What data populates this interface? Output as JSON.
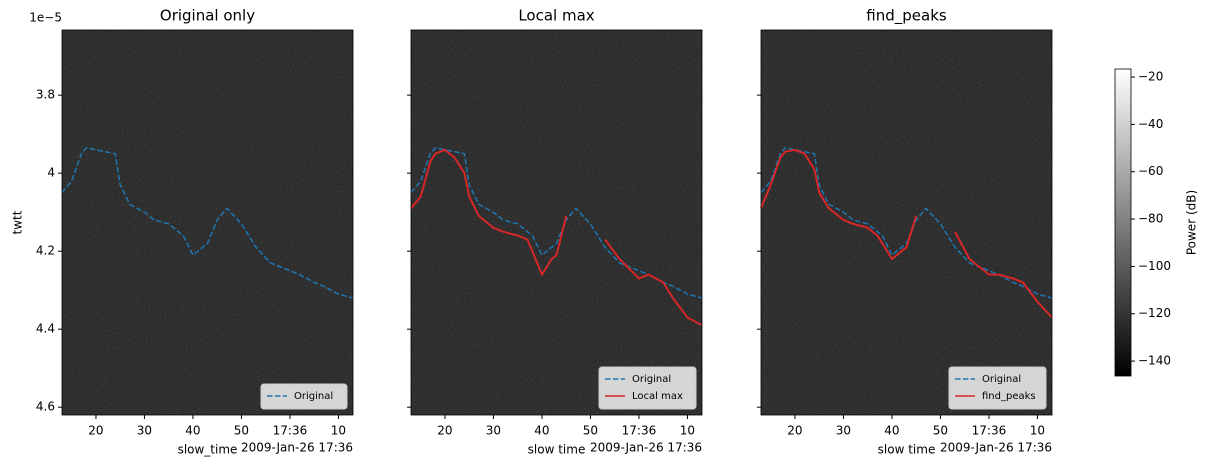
{
  "chart_data": [
    {
      "type": "line",
      "title": "Original only",
      "xlabel": "slow_time",
      "ylabel": "twtt",
      "x_offset_label": "2009-Jan-26 17:36",
      "y_offset_label": "1e−5",
      "xlim": [
        13,
        73
      ],
      "xticks": [
        20,
        30,
        40,
        50,
        {
          "value": 60,
          "label": "17:36"
        },
        {
          "value": 70,
          "label": "10"
        }
      ],
      "ylim": [
        4.62,
        3.633
      ],
      "yticks": [
        3.8,
        4.0,
        4.2,
        4.4,
        4.6
      ],
      "ytick_labels": true,
      "legend": "lower right",
      "x": [
        13,
        15,
        17,
        18,
        20,
        22,
        24,
        25,
        27,
        30,
        32,
        35,
        37,
        38,
        40,
        42,
        43,
        45,
        47,
        50,
        53,
        56,
        60,
        62,
        65,
        67,
        70,
        73
      ],
      "series": [
        {
          "name": "Original",
          "color": "#1f77b4",
          "linestyle": "dashed",
          "values": [
            4.05,
            4.02,
            3.95,
            3.935,
            3.94,
            3.945,
            3.95,
            4.03,
            4.08,
            4.1,
            4.12,
            4.13,
            4.15,
            4.16,
            4.21,
            4.19,
            4.18,
            4.12,
            4.09,
            4.13,
            4.19,
            4.23,
            4.25,
            4.26,
            4.28,
            4.29,
            4.31,
            4.32
          ]
        }
      ]
    },
    {
      "type": "line",
      "title": "Local max",
      "xlabel": "slow time",
      "x_offset_label": "2009-Jan-26 17:36",
      "xlim": [
        13,
        73
      ],
      "xticks": [
        20,
        30,
        40,
        50,
        {
          "value": 60,
          "label": "17:36"
        },
        {
          "value": 70,
          "label": "10"
        }
      ],
      "ylim": [
        4.62,
        3.633
      ],
      "yticks": [
        3.8,
        4.0,
        4.2,
        4.4,
        4.6
      ],
      "ytick_labels": false,
      "legend": "lower right",
      "x": [
        13,
        15,
        17,
        18,
        20,
        22,
        24,
        25,
        27,
        30,
        32,
        35,
        37,
        38,
        40,
        42,
        43,
        45,
        47,
        50,
        53,
        56,
        60,
        62,
        65,
        67,
        70,
        73
      ],
      "series": [
        {
          "name": "Original",
          "color": "#1f77b4",
          "linestyle": "dashed",
          "values": [
            4.05,
            4.02,
            3.95,
            3.935,
            3.94,
            3.945,
            3.95,
            4.03,
            4.08,
            4.1,
            4.12,
            4.13,
            4.15,
            4.16,
            4.21,
            4.19,
            4.18,
            4.12,
            4.09,
            4.13,
            4.19,
            4.23,
            4.25,
            4.26,
            4.28,
            4.29,
            4.31,
            4.32
          ]
        },
        {
          "name": "Local max",
          "color": "#d62728",
          "linestyle": "solid",
          "values": [
            4.09,
            4.06,
            3.97,
            3.95,
            3.94,
            3.96,
            4.0,
            4.06,
            4.11,
            4.14,
            4.15,
            4.16,
            4.17,
            4.2,
            4.26,
            4.22,
            4.21,
            4.11,
            null,
            null,
            4.17,
            4.22,
            4.27,
            4.26,
            4.28,
            4.32,
            4.37,
            4.39
          ]
        }
      ]
    },
    {
      "type": "line",
      "title": "find_peaks",
      "xlabel": "slow time",
      "x_offset_label": "2009-Jan-26 17:36",
      "xlim": [
        13,
        73
      ],
      "xticks": [
        20,
        30,
        40,
        50,
        {
          "value": 60,
          "label": "17:36"
        },
        {
          "value": 70,
          "label": "10"
        }
      ],
      "ylim": [
        4.62,
        3.633
      ],
      "yticks": [
        3.8,
        4.0,
        4.2,
        4.4,
        4.6
      ],
      "ytick_labels": false,
      "legend": "lower right",
      "x": [
        13,
        15,
        17,
        18,
        20,
        22,
        24,
        25,
        27,
        30,
        32,
        35,
        37,
        38,
        40,
        42,
        43,
        45,
        47,
        50,
        53,
        56,
        60,
        62,
        65,
        67,
        70,
        73
      ],
      "series": [
        {
          "name": "Original",
          "color": "#1f77b4",
          "linestyle": "dashed",
          "values": [
            4.05,
            4.02,
            3.95,
            3.935,
            3.94,
            3.945,
            3.95,
            4.03,
            4.08,
            4.1,
            4.12,
            4.13,
            4.15,
            4.16,
            4.21,
            4.19,
            4.18,
            4.12,
            4.09,
            4.13,
            4.19,
            4.23,
            4.25,
            4.26,
            4.28,
            4.29,
            4.31,
            4.32
          ]
        },
        {
          "name": "find_peaks",
          "color": "#d62728",
          "linestyle": "solid",
          "values": [
            4.09,
            4.03,
            3.96,
            3.945,
            3.94,
            3.95,
            3.99,
            4.05,
            4.09,
            4.12,
            4.13,
            4.14,
            4.16,
            4.18,
            4.22,
            4.2,
            4.19,
            4.11,
            null,
            null,
            4.15,
            4.22,
            4.26,
            4.26,
            4.27,
            4.28,
            4.33,
            4.37
          ]
        }
      ]
    }
  ],
  "colorbar": {
    "label": "Power (dB)",
    "lim": [
      -146.3,
      -16.6
    ],
    "ticks": [
      {
        "value": -20,
        "label": "−20"
      },
      {
        "value": -40,
        "label": "−40"
      },
      {
        "value": -60,
        "label": "−60"
      },
      {
        "value": -80,
        "label": "−80"
      },
      {
        "value": -100,
        "label": "−100"
      },
      {
        "value": -120,
        "label": "−120"
      },
      {
        "value": -140,
        "label": "−140"
      }
    ]
  }
}
